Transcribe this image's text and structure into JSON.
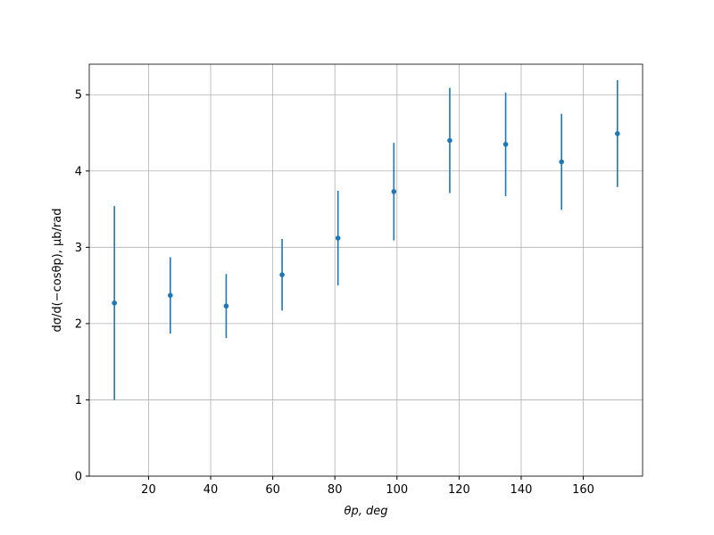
{
  "chart_data": {
    "type": "errorbar",
    "xlabel": "θp, deg",
    "ylabel": "dσ/d(−cosθp), μb/rad",
    "x": [
      9,
      27,
      45,
      63,
      81,
      99,
      117,
      135,
      153,
      171
    ],
    "series": [
      {
        "color": "#1f77b4",
        "values": [
          2.27,
          2.37,
          2.23,
          2.64,
          3.12,
          3.73,
          4.4,
          4.35,
          4.12,
          4.49
        ],
        "errors": [
          1.27,
          0.5,
          0.42,
          0.47,
          0.62,
          0.64,
          0.69,
          0.68,
          0.63,
          0.7
        ]
      }
    ],
    "xlim": [
      0.9,
      179.1
    ],
    "ylim": [
      0,
      5.4
    ],
    "xticks": [
      20,
      40,
      60,
      80,
      100,
      120,
      140,
      160
    ],
    "yticks": [
      0,
      1,
      2,
      3,
      4,
      5
    ],
    "grid": true
  }
}
